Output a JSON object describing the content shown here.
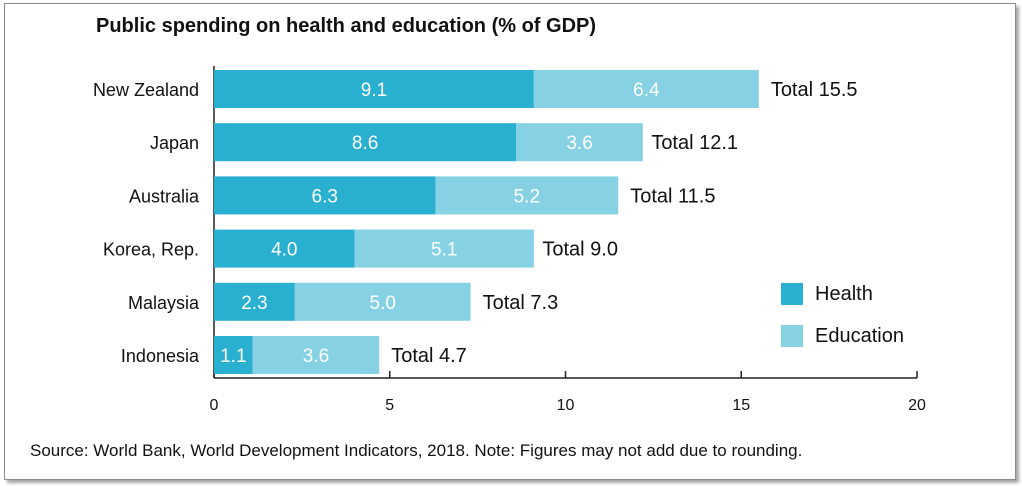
{
  "chart_data": {
    "type": "bar",
    "orientation": "horizontal",
    "stacked": true,
    "title": "Public spending on health and education (% of GDP)",
    "categories": [
      "New Zealand",
      "Japan",
      "Australia",
      "Korea, Rep.",
      "Malaysia",
      "Indonesia"
    ],
    "series": [
      {
        "name": "Health",
        "color": "#29afd0",
        "values": [
          9.1,
          8.6,
          6.3,
          4.0,
          2.3,
          1.1
        ],
        "labels": [
          "9.1",
          "8.6",
          "6.3",
          "4.0",
          "2.3",
          "1.1"
        ]
      },
      {
        "name": "Education",
        "color": "#86d2e4",
        "values": [
          6.4,
          3.6,
          5.2,
          5.1,
          5.0,
          3.6
        ],
        "labels": [
          "6.4",
          "3.6",
          "5.2",
          "5.1",
          "5.0",
          "3.6"
        ]
      }
    ],
    "totals": [
      15.5,
      12.1,
      11.5,
      9.0,
      7.3,
      4.7
    ],
    "total_labels": [
      "Total 15.5",
      "Total 12.1",
      "Total 11.5",
      "Total 9.0",
      "Total 7.3",
      "Total 4.7"
    ],
    "xlim": [
      0,
      20
    ],
    "xticks": [
      0,
      5,
      10,
      15,
      20
    ],
    "xtick_labels": [
      "0",
      "5",
      "10",
      "15",
      "20"
    ],
    "grid": false,
    "legend_position": "right",
    "source": "Source: World Bank, World Development Indicators, 2018. Note: Figures may not add due to rounding."
  }
}
